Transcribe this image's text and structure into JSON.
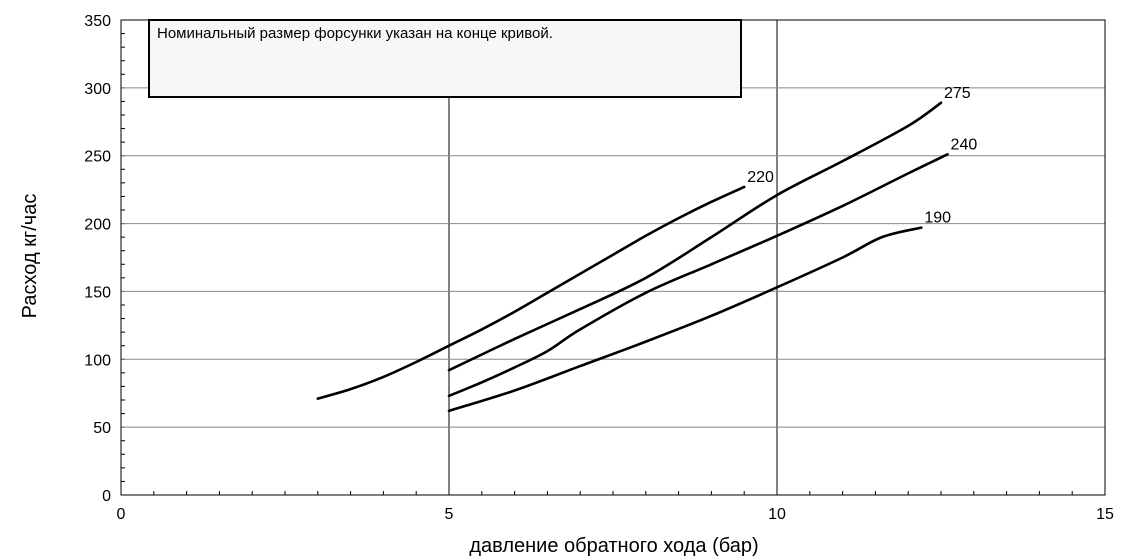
{
  "chart_data": {
    "type": "line",
    "xlabel": "давление обратного хода (бар)",
    "ylabel": "Расход кг/час",
    "xlim": [
      0,
      15
    ],
    "ylim": [
      0,
      350
    ],
    "x_ticks": [
      "0",
      "5",
      "10",
      "15"
    ],
    "y_ticks": [
      "0",
      "50",
      "100",
      "150",
      "200",
      "250",
      "300",
      "350"
    ],
    "grid": {
      "vertical_major_step": 5,
      "horizontal_major_step": 50,
      "minor_x_step": 0.5,
      "minor_y_step": 10
    },
    "annotation": "Номинальный размер форсунки указан на конце кривой.",
    "series": [
      {
        "name": "220",
        "x": [
          3.0,
          3.5,
          4.0,
          4.5,
          5.0,
          5.5,
          6.0,
          6.5,
          7.0,
          7.5,
          8.0,
          8.5,
          9.0,
          9.5
        ],
        "y": [
          71,
          78,
          87,
          98,
          110,
          122,
          135,
          149,
          163,
          177,
          191,
          204,
          216,
          227
        ]
      },
      {
        "name": "275",
        "x": [
          5.0,
          6.0,
          7.0,
          8.0,
          9.0,
          10.0,
          11.0,
          12.0,
          12.5
        ],
        "y": [
          92,
          115,
          137,
          160,
          190,
          221,
          246,
          272,
          289
        ]
      },
      {
        "name": "240",
        "x": [
          5.0,
          5.5,
          6.0,
          6.5,
          7.0,
          8.0,
          9.0,
          10.0,
          11.0,
          12.0,
          12.6
        ],
        "y": [
          73,
          83,
          94,
          106,
          122,
          149,
          170,
          191,
          213,
          237,
          251
        ]
      },
      {
        "name": "190",
        "x": [
          5.0,
          6.0,
          7.0,
          8.0,
          9.0,
          10.0,
          11.0,
          11.6,
          12.2
        ],
        "y": [
          62,
          77,
          95,
          113,
          132,
          153,
          175,
          190,
          197
        ]
      }
    ]
  }
}
